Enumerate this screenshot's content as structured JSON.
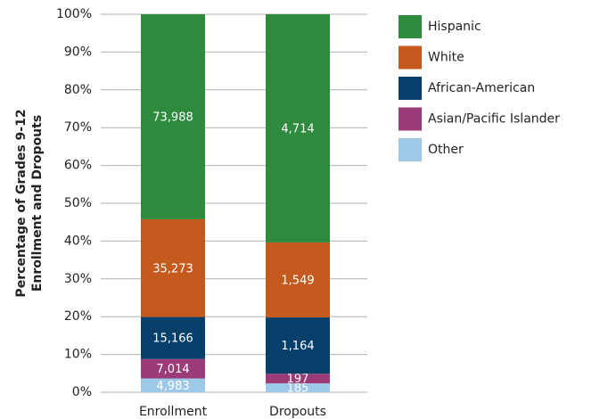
{
  "chart_data": {
    "type": "bar",
    "stacked": "percent",
    "ylabel": [
      "Percentage of Grades 9-12",
      "Enrollment and Dropouts"
    ],
    "categories": [
      "Enrollment",
      "Dropouts"
    ],
    "series": [
      {
        "name": "Other",
        "color": "#9dc8e8",
        "values": [
          4983,
          185
        ],
        "value_labels": [
          "4,983",
          "185"
        ]
      },
      {
        "name": "Asian/Pacific Islander",
        "color": "#9b3b77",
        "values": [
          7014,
          197
        ],
        "value_labels": [
          "7,014",
          "197"
        ]
      },
      {
        "name": "African-American",
        "color": "#073f6b",
        "values": [
          15166,
          1164
        ],
        "value_labels": [
          "15,166",
          "1,164"
        ]
      },
      {
        "name": "White",
        "color": "#c55a1e",
        "values": [
          35273,
          1549
        ],
        "value_labels": [
          "35,273",
          "1,549"
        ]
      },
      {
        "name": "Hispanic",
        "color": "#2e8b3e",
        "values": [
          73988,
          4714
        ],
        "value_labels": [
          "73,988",
          "4,714"
        ]
      }
    ],
    "ylim": [
      0,
      100
    ],
    "yticks": [
      {
        "value": 0,
        "label": "0%"
      },
      {
        "value": 10,
        "label": "10%"
      },
      {
        "value": 20,
        "label": "20%"
      },
      {
        "value": 30,
        "label": "30%"
      },
      {
        "value": 40,
        "label": "40%"
      },
      {
        "value": 50,
        "label": "50%"
      },
      {
        "value": 60,
        "label": "60%"
      },
      {
        "value": 70,
        "label": "70%"
      },
      {
        "value": 80,
        "label": "80%"
      },
      {
        "value": 90,
        "label": "90%"
      },
      {
        "value": 100,
        "label": "100%"
      }
    ],
    "grid": true,
    "legend": "right"
  }
}
